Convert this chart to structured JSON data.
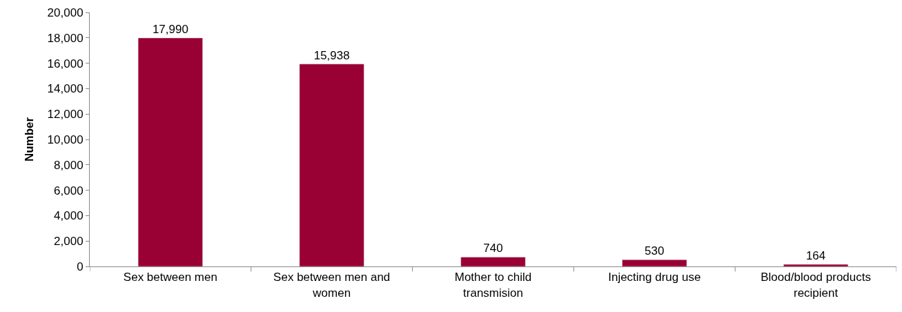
{
  "chart_data": {
    "type": "bar",
    "ylabel": "Number",
    "categories": [
      "Sex between men",
      "Sex between men and women",
      "Mother to child transmision",
      "Injecting drug use",
      "Blood/blood products recipient"
    ],
    "values": [
      17990,
      15938,
      740,
      530,
      164
    ],
    "color": "#990033",
    "ylim": [
      0,
      20000
    ],
    "yticks": [
      {
        "value": 0,
        "label": "0"
      },
      {
        "value": 2000,
        "label": "2,000"
      },
      {
        "value": 4000,
        "label": "4,000"
      },
      {
        "value": 6000,
        "label": "6,000"
      },
      {
        "value": 8000,
        "label": "8,000"
      },
      {
        "value": 10000,
        "label": "10,000"
      },
      {
        "value": 12000,
        "label": "12,000"
      },
      {
        "value": 14000,
        "label": "14,000"
      },
      {
        "value": 16000,
        "label": "16,000"
      },
      {
        "value": 18000,
        "label": "18,000"
      },
      {
        "value": 20000,
        "label": "20,000"
      }
    ],
    "value_labels": [
      "17,990",
      "15,938",
      "740",
      "530",
      "164"
    ]
  }
}
